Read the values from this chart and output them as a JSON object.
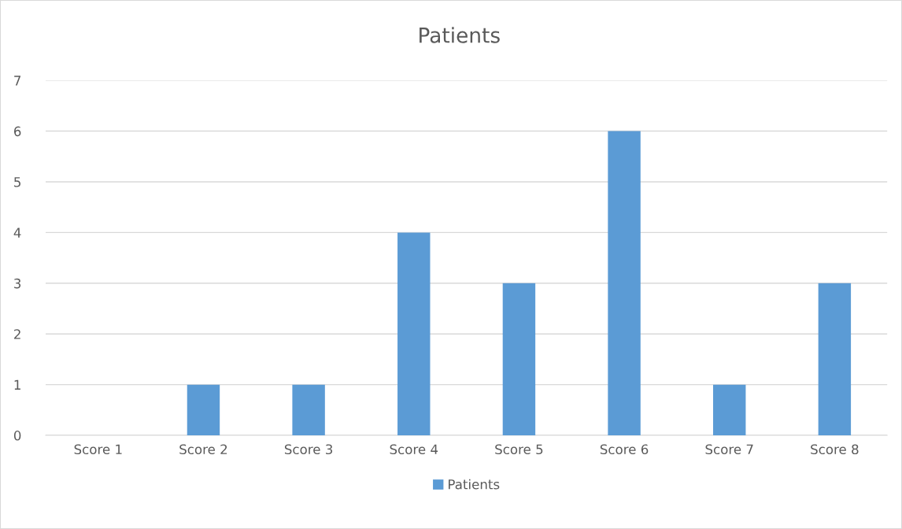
{
  "chart_data": {
    "type": "bar",
    "title": "Patients",
    "categories": [
      "Score 1",
      "Score 2",
      "Score 3",
      "Score 4",
      "Score 5",
      "Score 6",
      "Score 7",
      "Score 8"
    ],
    "series": [
      {
        "name": "Patients",
        "color": "#5b9bd5",
        "values": [
          0,
          1,
          1,
          4,
          3,
          6,
          1,
          3
        ]
      }
    ],
    "ylim": [
      0,
      7
    ],
    "yticks": [
      0,
      1,
      2,
      3,
      4,
      5,
      6,
      7
    ],
    "grid": "y",
    "legend": "bottom"
  }
}
